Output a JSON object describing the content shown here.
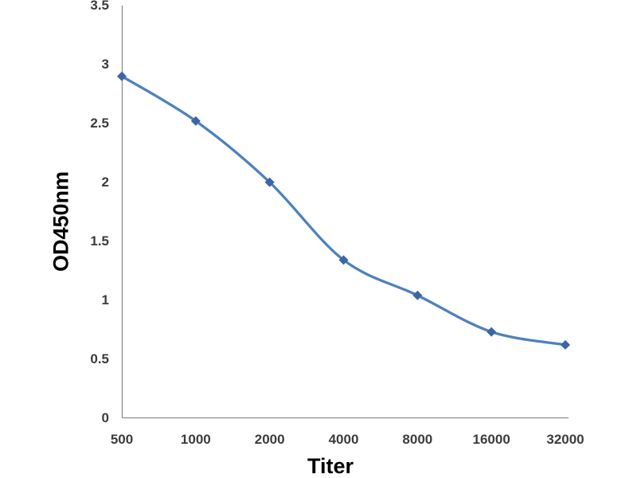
{
  "chart_data": {
    "type": "line",
    "smooth": true,
    "title": "",
    "xlabel": "Titer",
    "ylabel": "OD450nm",
    "categories": [
      "500",
      "1000",
      "2000",
      "4000",
      "8000",
      "16000",
      "32000"
    ],
    "series": [
      {
        "name": "OD450nm",
        "values": [
          2.9,
          2.52,
          2.0,
          1.34,
          1.04,
          0.73,
          0.62
        ]
      }
    ],
    "ylim": [
      0,
      3.5
    ],
    "y_ticks": [
      0,
      0.5,
      1,
      1.5,
      2,
      2.5,
      3,
      3.5
    ],
    "y_tick_labels": [
      "0",
      "0.5",
      "1",
      "1.5",
      "2",
      "2.5",
      "3",
      "3.5"
    ],
    "grid": "off",
    "legend": "none",
    "marker": "diamond",
    "colors": {
      "line": "#4f81bd",
      "marker_fill": "#3c64a6",
      "axis": "#8e8e8e",
      "tick_text": "#3c3c3c",
      "title_text": "#000000",
      "background": "#ffffff"
    }
  }
}
